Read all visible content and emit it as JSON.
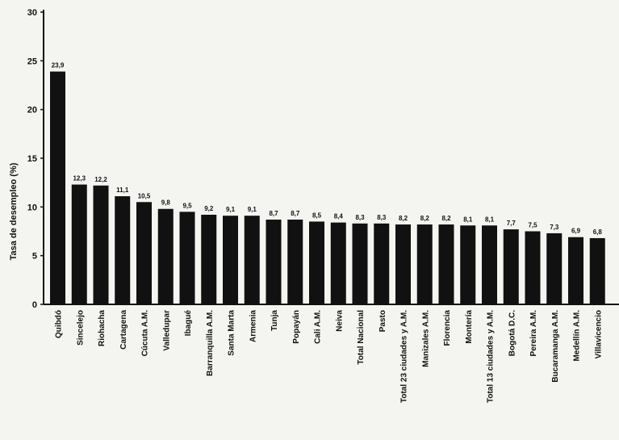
{
  "chart_data": {
    "type": "bar",
    "title": "",
    "xlabel": "",
    "ylabel": "Tasa de desempleo (%)",
    "ylim": [
      0,
      30
    ],
    "yticks": [
      "0",
      "5",
      "10",
      "15",
      "20",
      "25",
      "30"
    ],
    "grid": false,
    "categories": [
      "Quibdó",
      "Sincelejo",
      "Riohacha",
      "Cartagena",
      "Cúcuta A.M.",
      "Valledupar",
      "Ibagué",
      "Barranquilla A.M.",
      "Santa Marta",
      "Armenia",
      "Tunja",
      "Popayán",
      "Cali A.M.",
      "Neiva",
      "Total Nacional",
      "Pasto",
      "Total 23 ciudades y A.M.",
      "Manizales A.M.",
      "Florencia",
      "Montería",
      "Total 13 ciudades y A.M.",
      "Bogotá D.C.",
      "Pereira A.M.",
      "Bucaramanga A.M.",
      "Medellín A.M.",
      "Villavicencio"
    ],
    "values": [
      23.9,
      12.3,
      12.2,
      11.1,
      10.5,
      9.8,
      9.5,
      9.2,
      9.1,
      9.1,
      8.7,
      8.7,
      8.5,
      8.4,
      8.3,
      8.3,
      8.2,
      8.2,
      8.2,
      8.1,
      8.1,
      7.7,
      7.5,
      7.3,
      6.9,
      6.8
    ],
    "data_labels": [
      "23,9",
      "12,3",
      "12,2",
      "11,1",
      "10,5",
      "9,8",
      "9,5",
      "9,2",
      "9,1",
      "9,1",
      "8,7",
      "8,7",
      "8,5",
      "8,4",
      "8,3",
      "8,3",
      "8,2",
      "8,2",
      "8,2",
      "8,1",
      "8,1",
      "7,7",
      "7,5",
      "7,3",
      "6,9",
      "6,8"
    ],
    "bar_color": "#111111"
  }
}
